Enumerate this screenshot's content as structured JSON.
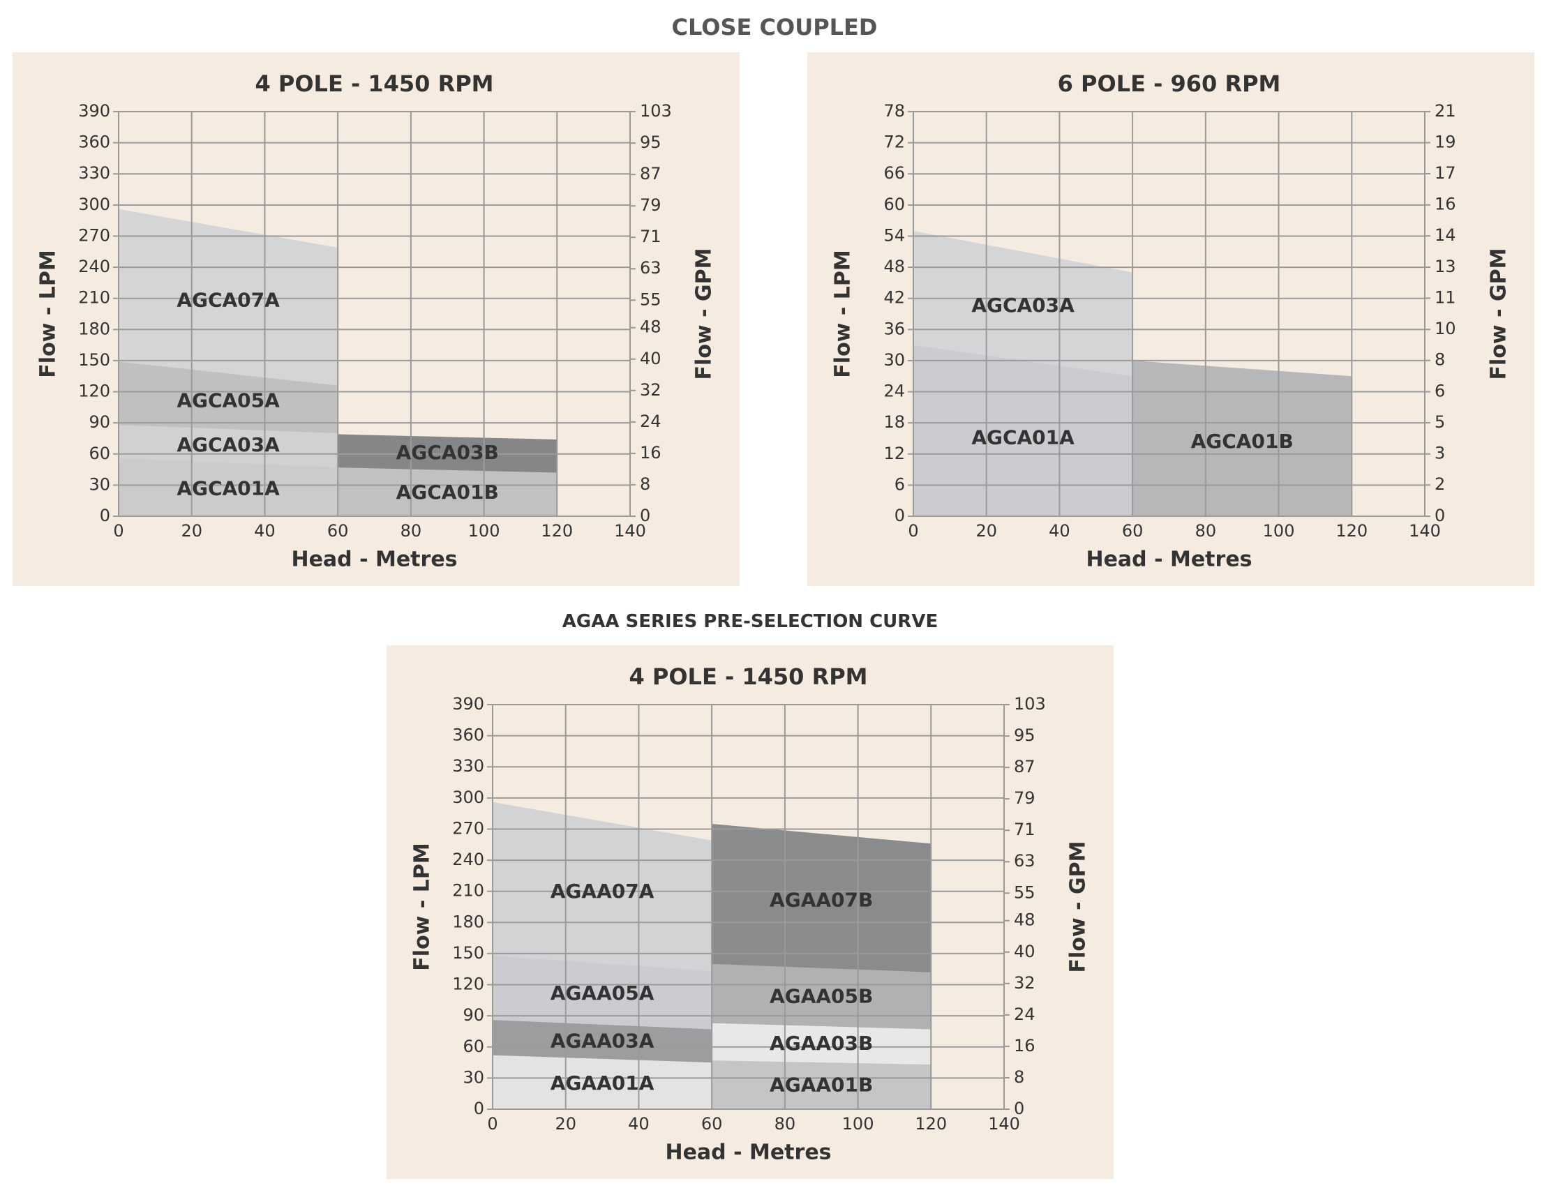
{
  "title": "CLOSE COUPLED",
  "subtitle": "AGAA SERIES PRE-SELECTION CURVE",
  "chart_data": [
    {
      "type": "area",
      "title": "4 POLE - 1450 RPM",
      "xlabel": "Head - Metres",
      "ylabel": "Flow - LPM",
      "y2label": "Flow - GPM",
      "xlim": [
        0,
        140
      ],
      "xticks": [
        0,
        20,
        40,
        60,
        80,
        100,
        120,
        140
      ],
      "ylim": [
        0,
        390
      ],
      "yticks": [
        0,
        30,
        60,
        90,
        120,
        150,
        180,
        210,
        240,
        270,
        300,
        330,
        360,
        390
      ],
      "y2lim": [
        0,
        103
      ],
      "y2ticks": [
        0,
        8,
        16,
        24,
        32,
        40,
        48,
        55,
        63,
        71,
        79,
        87,
        95,
        103
      ],
      "grid": true,
      "series": [
        {
          "name": "AGCA07A",
          "color": "#d4d5d7",
          "x": [
            0,
            60
          ],
          "values": [
            296,
            259
          ]
        },
        {
          "name": "AGCA05A",
          "color": "#bfc0c2",
          "x": [
            0,
            60
          ],
          "values": [
            149,
            126
          ]
        },
        {
          "name": "AGCA03A",
          "color": "#d0d1d3",
          "x": [
            0,
            60
          ],
          "values": [
            88,
            80
          ]
        },
        {
          "name": "AGCA03B",
          "color": "#858688",
          "x": [
            60,
            120
          ],
          "values": [
            79,
            74
          ]
        },
        {
          "name": "AGCA01A",
          "color": "#cacbcd",
          "x": [
            0,
            60
          ],
          "values": [
            56,
            47
          ]
        },
        {
          "name": "AGCA01B",
          "color": "#c0c1c3",
          "x": [
            60,
            120
          ],
          "values": [
            47,
            42
          ]
        }
      ]
    },
    {
      "type": "area",
      "title": "6 POLE - 960 RPM",
      "xlabel": "Head - Metres",
      "ylabel": "Flow - LPM",
      "y2label": "Flow - GPM",
      "xlim": [
        0,
        140
      ],
      "xticks": [
        0,
        20,
        40,
        60,
        80,
        100,
        120,
        140
      ],
      "ylim": [
        0,
        78
      ],
      "yticks": [
        0,
        6,
        12,
        18,
        24,
        30,
        36,
        42,
        48,
        54,
        60,
        66,
        72,
        78
      ],
      "y2lim": [
        0,
        20.6
      ],
      "y2ticks": [
        0,
        {
          "value": 1.59,
          "label": "2"
        },
        {
          "value": 3.17,
          "label": "3"
        },
        {
          "value": 4.76,
          "label": "5"
        },
        {
          "value": 6.34,
          "label": "6"
        },
        {
          "value": 7.93,
          "label": "8"
        },
        {
          "value": 9.51,
          "label": "10"
        },
        {
          "value": 11.1,
          "label": "11"
        },
        {
          "value": 12.68,
          "label": "13"
        },
        {
          "value": 14.27,
          "label": "14"
        },
        {
          "value": 15.85,
          "label": "16"
        },
        {
          "value": 17.44,
          "label": "17"
        },
        {
          "value": 19.02,
          "label": "19"
        },
        {
          "value": 20.6,
          "label": "21"
        }
      ],
      "grid": true,
      "series": [
        {
          "name": "AGCA03A",
          "color": "#d4d5d7",
          "x": [
            0,
            60
          ],
          "values": [
            55,
            47
          ]
        },
        {
          "name": "AGCA01A",
          "color": "#cbcccf",
          "x": [
            0,
            60
          ],
          "values": [
            33,
            27
          ]
        },
        {
          "name": "AGCA01B",
          "color": "#b6b7b9",
          "x": [
            60,
            120
          ],
          "values": [
            30,
            27
          ]
        }
      ]
    },
    {
      "type": "area",
      "title": "4 POLE - 1450 RPM",
      "xlabel": "Head - Metres",
      "ylabel": "Flow - LPM",
      "y2label": "Flow - GPM",
      "xlim": [
        0,
        140
      ],
      "xticks": [
        0,
        20,
        40,
        60,
        80,
        100,
        120,
        140
      ],
      "ylim": [
        0,
        390
      ],
      "yticks": [
        0,
        30,
        60,
        90,
        120,
        150,
        180,
        210,
        240,
        270,
        300,
        330,
        360,
        390
      ],
      "y2lim": [
        0,
        103
      ],
      "y2ticks": [
        0,
        8,
        16,
        24,
        32,
        40,
        48,
        55,
        63,
        71,
        79,
        87,
        95,
        103
      ],
      "grid": true,
      "series": [
        {
          "name": "AGAA07A",
          "color": "#d2d3d5",
          "x": [
            0,
            60
          ],
          "values": [
            296,
            259
          ]
        },
        {
          "name": "AGAA07B",
          "color": "#8a8b8d",
          "x": [
            60,
            120
          ],
          "values": [
            275,
            256
          ]
        },
        {
          "name": "AGAA05A",
          "color": "#cbcccf",
          "x": [
            0,
            60
          ],
          "values": [
            148,
            133
          ]
        },
        {
          "name": "AGAA05B",
          "color": "#b0b1b3",
          "x": [
            60,
            120
          ],
          "values": [
            140,
            132
          ]
        },
        {
          "name": "AGAA03A",
          "color": "#9c9d9f",
          "x": [
            0,
            60
          ],
          "values": [
            86,
            77
          ]
        },
        {
          "name": "AGAA03B",
          "color": "#e8e8e9",
          "x": [
            60,
            120
          ],
          "values": [
            83,
            77
          ]
        },
        {
          "name": "AGAA01A",
          "color": "#e3e3e4",
          "x": [
            0,
            60
          ],
          "values": [
            52,
            45
          ]
        },
        {
          "name": "AGAA01B",
          "color": "#c4c5c7",
          "x": [
            60,
            120
          ],
          "values": [
            47,
            43
          ]
        }
      ]
    }
  ]
}
